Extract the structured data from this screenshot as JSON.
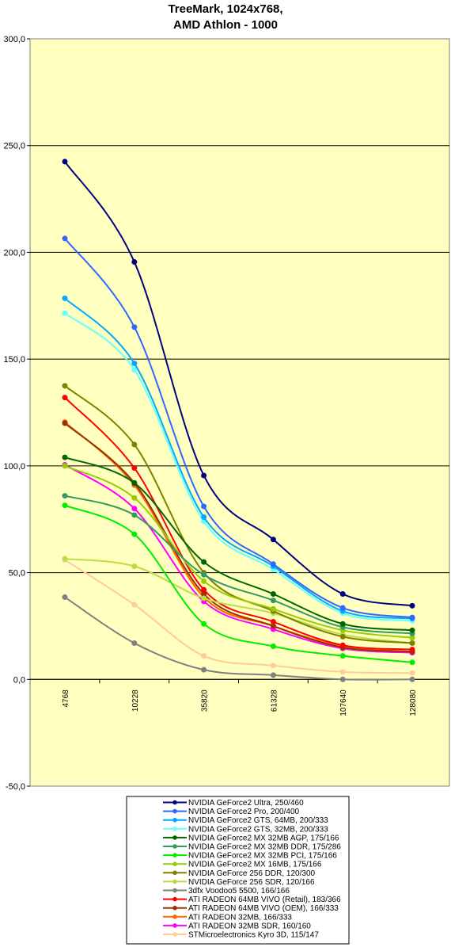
{
  "chart_data": {
    "type": "line",
    "title": [
      "TreeMark, 1024x768,",
      "AMD Athlon - 1000"
    ],
    "xlabel": "",
    "ylabel": "",
    "categories": [
      "4768",
      "10228",
      "35820",
      "61328",
      "107640",
      "128080"
    ],
    "ylim": [
      -50,
      300
    ],
    "yticks": [
      "300,0",
      "250,0",
      "200,0",
      "150,0",
      "100,0",
      "50,0",
      "0,0",
      "-50,0"
    ],
    "ytick_values": [
      300,
      250,
      200,
      150,
      100,
      50,
      0,
      -50
    ],
    "grid": true,
    "plot_background": "#FFFFC0",
    "legend_position": "bottom",
    "series": [
      {
        "name": "NVIDIA GeForce2 Ultra, 250/460",
        "color": "#000080",
        "values": [
          242.5,
          195.5,
          95.5,
          65.5,
          40,
          34.5
        ]
      },
      {
        "name": "NVIDIA GeForce2 Pro, 200/400",
        "color": "#3366FF",
        "values": [
          206.5,
          165,
          81,
          54,
          33.5,
          29
        ]
      },
      {
        "name": "NVIDIA GeForce2 GTS, 64MB, 200/333",
        "color": "#00AAFF",
        "values": [
          178.5,
          148,
          76,
          53,
          32,
          28.5
        ]
      },
      {
        "name": "NVIDIA GeForce2 GTS, 32MB, 200/333",
        "color": "#66FFFF",
        "values": [
          171.5,
          145,
          74,
          51.5,
          31,
          27.5
        ]
      },
      {
        "name": "NVIDIA GeForce2 MX 32MB AGP, 175/166",
        "color": "#006600",
        "values": [
          104,
          92,
          55,
          40,
          26,
          23
        ]
      },
      {
        "name": "NVIDIA GeForce2 MX 32MB DDR, 175/286",
        "color": "#339966",
        "values": [
          86,
          77,
          49,
          37,
          24.5,
          21.5
        ]
      },
      {
        "name": "NVIDIA GeForce2 MX 32MB PCI, 175/166",
        "color": "#00EE00",
        "values": [
          81.5,
          68,
          26,
          15.5,
          11,
          8
        ]
      },
      {
        "name": "NVIDIA GeForce2 MX 16MB, 175/166",
        "color": "#99CC00",
        "values": [
          100,
          85,
          46,
          33,
          23,
          19.5
        ]
      },
      {
        "name": "NVIDIA GeForce 256 DDR, 120/300",
        "color": "#808000",
        "values": [
          137.5,
          110,
          50,
          32,
          20,
          17
        ]
      },
      {
        "name": "NVIDIA GeForce 256 SDR, 120/166",
        "color": "#BBDD44",
        "values": [
          56.5,
          53,
          38,
          31,
          21,
          17
        ]
      },
      {
        "name": "3dfx Voodoo5 5500, 166/166",
        "color": "#808080",
        "values": [
          38.5,
          17,
          4.5,
          2,
          0,
          0
        ]
      },
      {
        "name": "ATI RADEON 64MB VIVO (Retail), 183/366",
        "color": "#FF0000",
        "values": [
          132,
          99,
          42,
          27,
          16,
          14
        ]
      },
      {
        "name": "ATI RADEON 64MB VIVO (OEM), 166/333",
        "color": "#993300",
        "values": [
          120,
          92,
          40,
          25,
          15,
          13
        ]
      },
      {
        "name": "ATI RADEON 32MB, 166/333",
        "color": "#FF6600",
        "values": [
          120.5,
          91,
          38.5,
          25,
          15.5,
          13
        ]
      },
      {
        "name": "ATI RADEON 32MB SDR, 160/160",
        "color": "#FF00FF",
        "values": [
          100.5,
          80,
          36.5,
          23.5,
          14.5,
          12.5
        ]
      },
      {
        "name": "STMicroelectronics Kyro 3D, 115/147",
        "color": "#FFCC99",
        "values": [
          56,
          35,
          11,
          6.5,
          3.5,
          3
        ]
      }
    ]
  }
}
